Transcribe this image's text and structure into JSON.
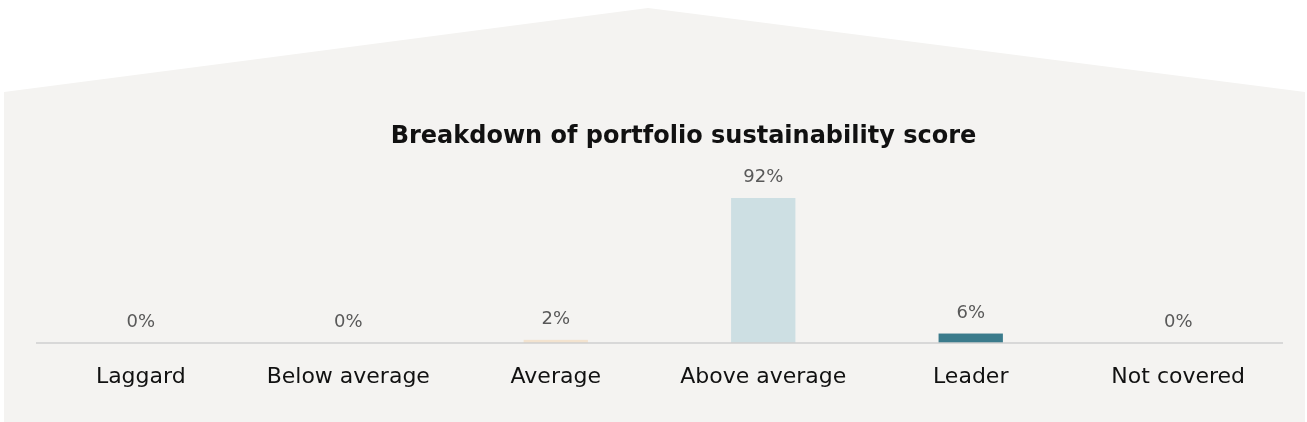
{
  "chart_data": {
    "type": "bar",
    "title": "Breakdown of portfolio sustainability score",
    "categories": [
      "Laggard",
      "Below average",
      "Average",
      "Above average",
      "Leader",
      "Not covered"
    ],
    "values": [
      0,
      0,
      2,
      92,
      6,
      0
    ],
    "colors": [
      "#e8d2b8",
      "#efdcc6",
      "#f3e3cf",
      "#cddfe3",
      "#3b7b8c",
      "#c8c8c8"
    ],
    "value_labels": [
      "0%",
      "0%",
      "2%",
      "92%",
      "6%",
      "0%"
    ]
  }
}
